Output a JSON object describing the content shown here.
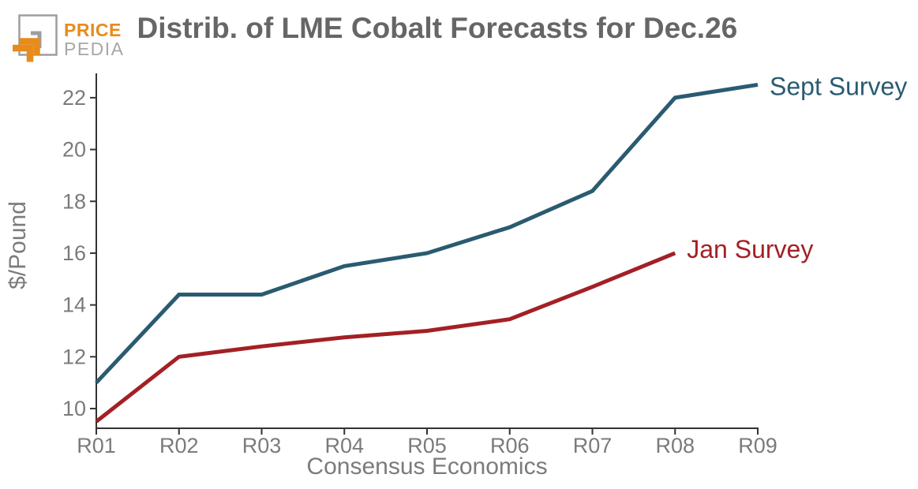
{
  "header": {
    "logo": {
      "line1": "PRICE",
      "line2": "PEDIA",
      "orange": "#e78b1c",
      "gray": "#9e9e9e"
    },
    "title": "Distrib. of LME Cobalt Forecasts for Dec.26"
  },
  "chart_data": {
    "type": "line",
    "title": "Distrib. of LME Cobalt Forecasts for Dec.26",
    "xlabel": "Consensus Economics",
    "ylabel": "$/Pound",
    "categories": [
      "R01",
      "R02",
      "R03",
      "R04",
      "R05",
      "R06",
      "R07",
      "R08",
      "R09"
    ],
    "yticks": [
      10,
      12,
      14,
      16,
      18,
      20,
      22
    ],
    "ylim": [
      9.24,
      22.94
    ],
    "grid": false,
    "legend_position": "end-of-line-labels",
    "series": [
      {
        "name": "Sept Survey",
        "color": "#2a5b70",
        "values": [
          11.0,
          14.4,
          14.4,
          15.5,
          16.0,
          17.0,
          18.4,
          22.0,
          22.5
        ]
      },
      {
        "name": "Jan Survey",
        "color": "#a32025",
        "values": [
          9.5,
          12.0,
          12.4,
          12.75,
          13.0,
          13.45,
          14.7,
          16.0,
          null
        ]
      }
    ]
  },
  "colors": {
    "axis": "#333333",
    "tick_label": "#7b7b7b",
    "title_text": "#666666"
  }
}
